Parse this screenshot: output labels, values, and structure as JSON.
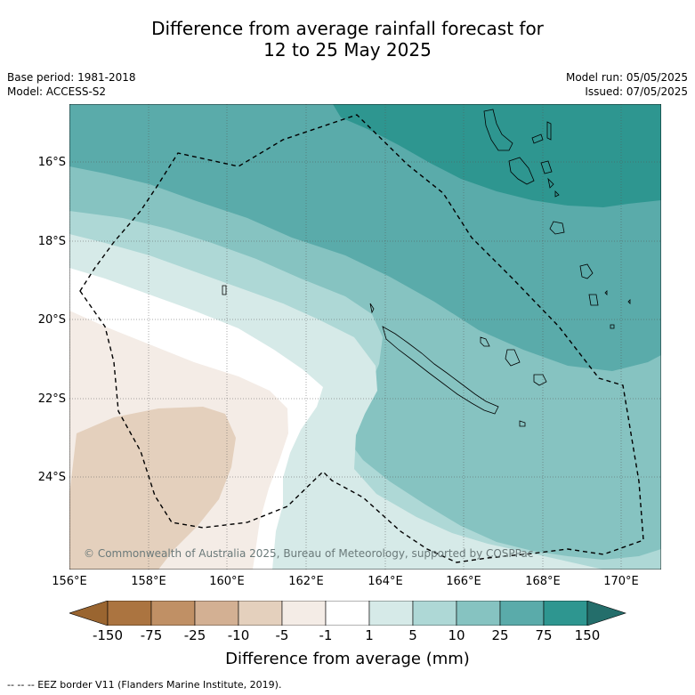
{
  "title": {
    "line1": "Difference from average rainfall forecast for",
    "line2": "12 to 25 May 2025"
  },
  "meta": {
    "base_period": "Base period: 1981-2018",
    "model": "Model: ACCESS-S2",
    "model_run": "Model run: 05/05/2025",
    "issued": "Issued: 07/05/2025"
  },
  "map": {
    "lat_labels": [
      "16°S",
      "18°S",
      "20°S",
      "22°S",
      "24°S"
    ],
    "lon_labels": [
      "156°E",
      "158°E",
      "160°E",
      "162°E",
      "164°E",
      "166°E",
      "168°E",
      "170°E"
    ],
    "copyright": "© Commonwealth of Australia 2025, Bureau of Meteorology, supported by COSPPac",
    "colors": {
      "c_150": "#2e9690",
      "c_75": "#5aabaa",
      "c_25": "#86c3c1",
      "c_10": "#aed8d6",
      "c_5": "#d6eae8",
      "c_neutral": "#ffffff",
      "c_m5": "#f4ece6",
      "c_m10": "#e4d0bd",
      "c_m25": "#d3b093",
      "c_m75": "#c09065",
      "c_m150": "#ab7440",
      "c_m_extreme": "#9a6530",
      "c_p_extreme": "#246e6b"
    }
  },
  "colorbar": {
    "tick_labels": [
      "-150",
      "-75",
      "-25",
      "-10",
      "-5",
      "-1",
      "1",
      "5",
      "10",
      "25",
      "75",
      "150"
    ],
    "label": "Difference from average (mm)"
  },
  "footer": "--  --  -- EEZ border V11 (Flanders Marine Institute, 2019)."
}
